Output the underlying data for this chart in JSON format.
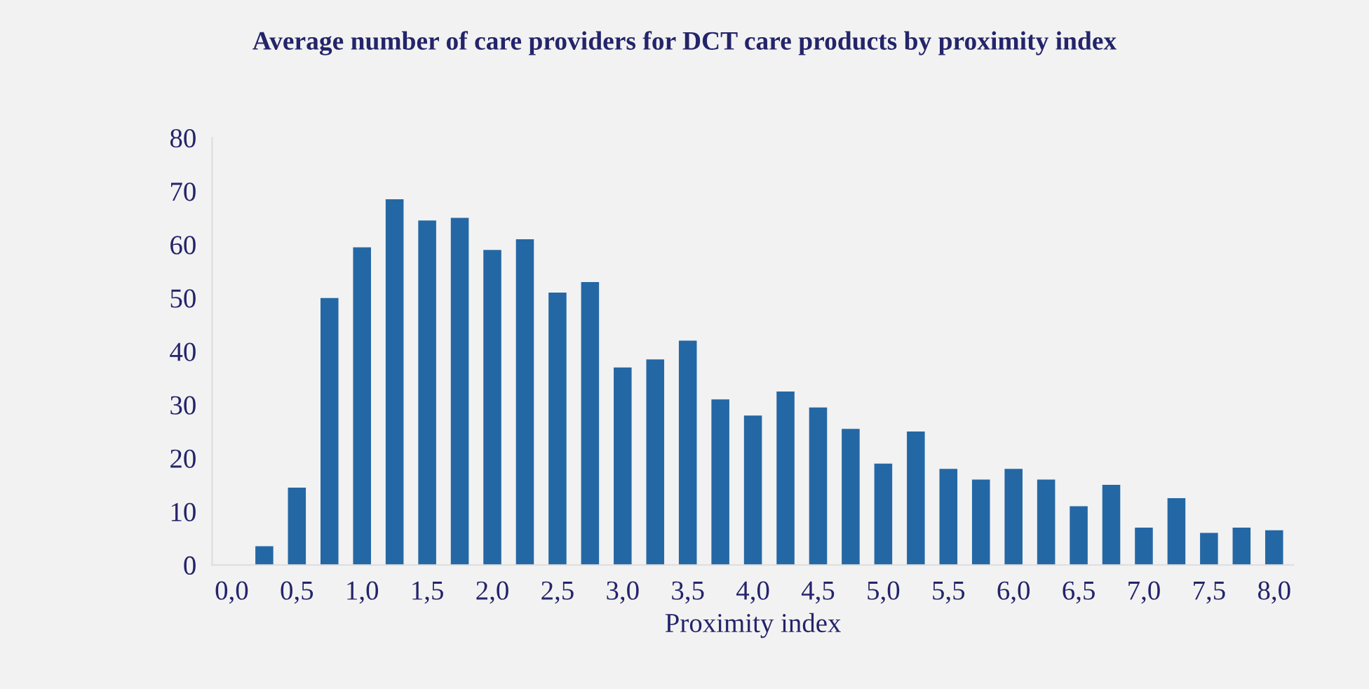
{
  "chart_data": {
    "type": "bar",
    "title": "Average number of care providers for DCT care products by proximity index",
    "xlabel": "Proximity index",
    "categories": [
      "0,0",
      null,
      "0,5",
      null,
      "1,0",
      null,
      "1,5",
      null,
      "2,0",
      null,
      "2,5",
      null,
      "3,0",
      null,
      "3,5",
      null,
      "4,0",
      null,
      "4,5",
      null,
      "5,0",
      null,
      "5,5",
      null,
      "6,0",
      null,
      "6,5",
      null,
      "7,0",
      null,
      "7,5",
      null,
      "8,0"
    ],
    "values": [
      0,
      3.5,
      14.5,
      50,
      59.5,
      68.5,
      64.5,
      65,
      59,
      61,
      51,
      53,
      37,
      38.5,
      42,
      31,
      28,
      32.5,
      29.5,
      25.5,
      19,
      25,
      18,
      16,
      18,
      16,
      11,
      15,
      7,
      12.5,
      6,
      7,
      6.5
    ],
    "color": "#2467a5",
    "ylim": [
      0,
      80
    ],
    "yticks": [
      0,
      10,
      20,
      30,
      40,
      50,
      60,
      70,
      80
    ],
    "grid": false,
    "legend": false
  }
}
